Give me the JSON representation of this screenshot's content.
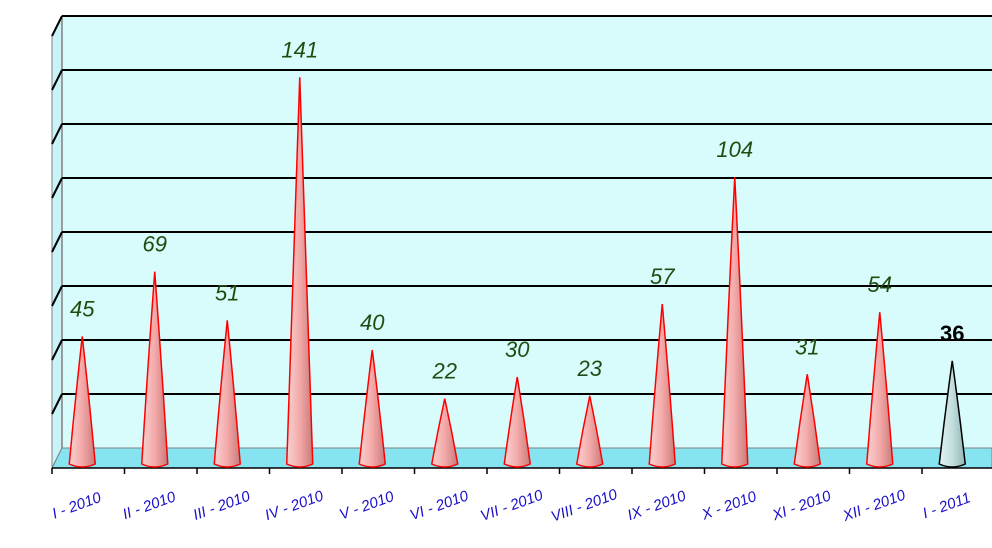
{
  "chart_data": {
    "type": "bar",
    "categories": [
      "I - 2010",
      "II - 2010",
      "III - 2010",
      "IV - 2010",
      "V - 2010",
      "VI - 2010",
      "VII - 2010",
      "VIII - 2010",
      "IX - 2010",
      "X - 2010",
      "XI - 2010",
      "XII - 2010",
      "I - 2011"
    ],
    "values": [
      45,
      69,
      51,
      141,
      40,
      22,
      30,
      23,
      57,
      104,
      31,
      54,
      36
    ],
    "labels": [
      "45",
      "69",
      "51",
      "141",
      "40",
      "22",
      "30",
      "23",
      "57",
      "104",
      "31",
      "54",
      "36"
    ],
    "highlight_index": 12,
    "ylim": [
      0,
      160
    ],
    "grid": true,
    "legend": "none",
    "colors": {
      "wall": "#d8fbfc",
      "floor": "#86e3f0",
      "bar_fill": "#f4b6b6",
      "bar_stroke": "#ff0000",
      "highlight_fill": "#c2dede",
      "highlight_stroke": "#000000",
      "label": "#1f4d10",
      "tick": "#1a10c8"
    }
  }
}
